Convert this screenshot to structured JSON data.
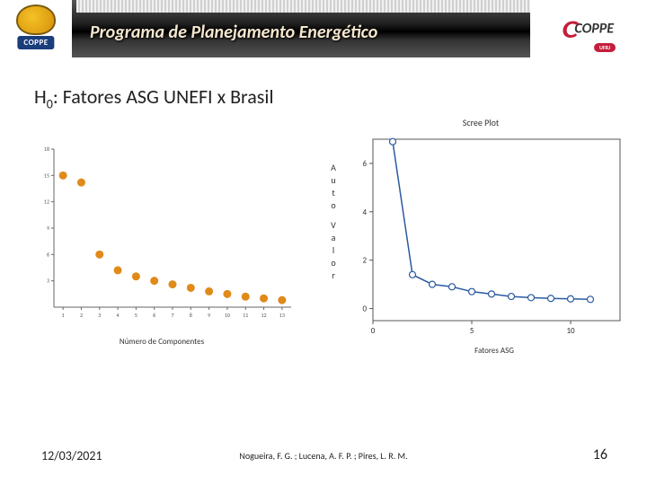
{
  "header": {
    "title": "Programa de Planejamento Energético",
    "left_logo_text": "COPPE",
    "right_logo_text": "COPPE",
    "right_logo_sub": "UFRJ"
  },
  "slide": {
    "title_prefix": "H",
    "title_sub": "0",
    "title_rest": ": Fatores ASG UNEFI x Brasil"
  },
  "chart1": {
    "type": "scatter",
    "xlabel": "Número de Componentes",
    "x": [
      1,
      2,
      3,
      4,
      5,
      6,
      7,
      8,
      9,
      10,
      11,
      12,
      13
    ],
    "y": [
      15,
      14.2,
      6,
      4.2,
      3.5,
      3.0,
      2.6,
      2.2,
      1.8,
      1.5,
      1.2,
      1.0,
      0.8
    ],
    "marker_color": "#e08a1a",
    "marker_size": 4.5,
    "axis_color": "#666666",
    "xlim": [
      0.5,
      13.5
    ],
    "ylim": [
      0,
      18
    ],
    "xticks": [
      1,
      2,
      3,
      4,
      5,
      6,
      7,
      8,
      9,
      10,
      11,
      12,
      13
    ],
    "yticks": [
      3,
      6,
      9,
      12,
      15,
      18
    ],
    "tick_fontsize": 6
  },
  "chart2": {
    "type": "line",
    "title": "Scree Plot",
    "xlabel": "Fatores  ASG",
    "ylabel_chars": [
      "A",
      "u",
      "t",
      "o",
      " ",
      "V",
      "a",
      "l",
      "o",
      "r"
    ],
    "x": [
      1,
      2,
      3,
      4,
      5,
      6,
      7,
      8,
      9,
      10,
      11
    ],
    "y": [
      6.9,
      1.4,
      1.0,
      0.9,
      0.7,
      0.6,
      0.5,
      0.45,
      0.42,
      0.4,
      0.38
    ],
    "line_color": "#2a5aa0",
    "marker_edge": "#2a5aa0",
    "marker_fill": "#ffffff",
    "marker_size": 3.5,
    "axis_color": "#555555",
    "xlim": [
      0,
      12.5
    ],
    "ylim": [
      -0.5,
      7
    ],
    "xticks": [
      0,
      5,
      10
    ],
    "yticks": [
      0,
      2,
      4,
      6
    ],
    "tick_fontsize": 9
  },
  "footer": {
    "date": "12/03/2021",
    "authors": "Nogueira, F. G. ; Lucena, A. F. P. ; Pires, L. R. M.",
    "page": "16"
  }
}
